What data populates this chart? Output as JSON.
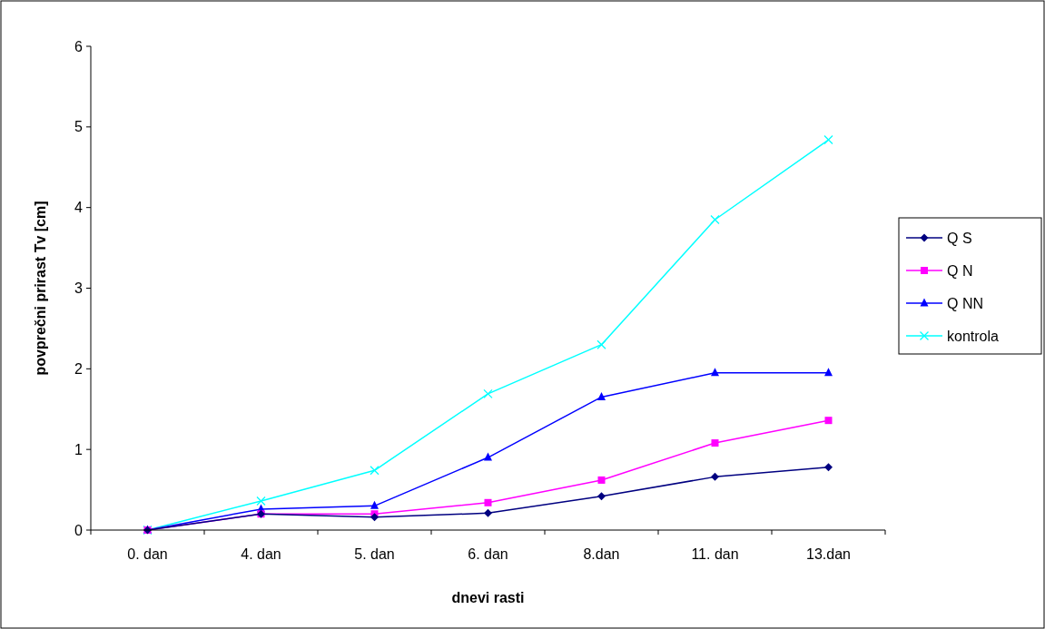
{
  "chart_data": {
    "type": "line",
    "xlabel": "dnevi rasti",
    "ylabel": "povprečni prirast Tv [cm]",
    "categories": [
      "0. dan",
      "4. dan",
      "5. dan",
      "6. dan",
      "8.dan",
      "11. dan",
      "13.dan"
    ],
    "series": [
      {
        "name": "Q S",
        "color": "#000080",
        "marker": "diamond",
        "values": [
          0,
          0.2,
          0.16,
          0.21,
          0.42,
          0.66,
          0.78
        ]
      },
      {
        "name": "Q N",
        "color": "#ff00ff",
        "marker": "square",
        "values": [
          0,
          0.2,
          0.2,
          0.34,
          0.62,
          1.08,
          1.36
        ]
      },
      {
        "name": "Q NN",
        "color": "#0000ff",
        "marker": "triangle",
        "values": [
          0,
          0.26,
          0.3,
          0.9,
          1.65,
          1.95,
          1.95
        ]
      },
      {
        "name": "kontrola",
        "color": "#00ffff",
        "marker": "cross",
        "values": [
          0,
          0.36,
          0.74,
          1.69,
          2.3,
          3.85,
          4.84
        ]
      }
    ],
    "ylim": [
      0,
      6
    ],
    "yticks": [
      0,
      1,
      2,
      3,
      4,
      5,
      6
    ],
    "grid": false,
    "legend": "right",
    "line_style": "solid"
  }
}
